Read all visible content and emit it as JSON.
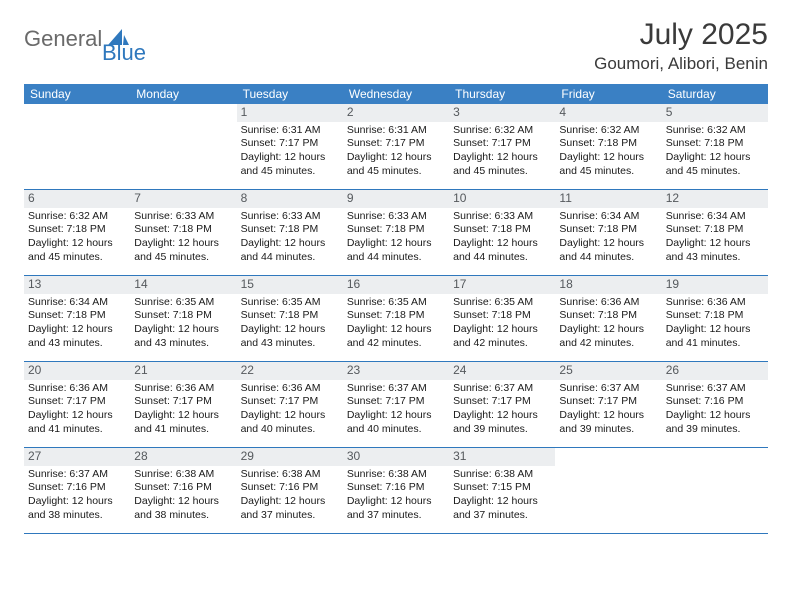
{
  "brand": {
    "general": "General",
    "blue": "Blue"
  },
  "title": "July 2025",
  "location": "Goumori, Alibori, Benin",
  "colors": {
    "header_bg": "#3a80c4",
    "header_text": "#ffffff",
    "date_bg": "#eceef0",
    "date_text": "#55595d",
    "divider": "#2f78bd",
    "logo_gray": "#6a6a6a",
    "logo_blue": "#2f78bd"
  },
  "day_names": [
    "Sunday",
    "Monday",
    "Tuesday",
    "Wednesday",
    "Thursday",
    "Friday",
    "Saturday"
  ],
  "weeks": [
    [
      {
        "n": "",
        "sunrise": "",
        "sunset": "",
        "daylight": ""
      },
      {
        "n": "",
        "sunrise": "",
        "sunset": "",
        "daylight": ""
      },
      {
        "n": "1",
        "sunrise": "Sunrise: 6:31 AM",
        "sunset": "Sunset: 7:17 PM",
        "daylight": "Daylight: 12 hours and 45 minutes."
      },
      {
        "n": "2",
        "sunrise": "Sunrise: 6:31 AM",
        "sunset": "Sunset: 7:17 PM",
        "daylight": "Daylight: 12 hours and 45 minutes."
      },
      {
        "n": "3",
        "sunrise": "Sunrise: 6:32 AM",
        "sunset": "Sunset: 7:17 PM",
        "daylight": "Daylight: 12 hours and 45 minutes."
      },
      {
        "n": "4",
        "sunrise": "Sunrise: 6:32 AM",
        "sunset": "Sunset: 7:18 PM",
        "daylight": "Daylight: 12 hours and 45 minutes."
      },
      {
        "n": "5",
        "sunrise": "Sunrise: 6:32 AM",
        "sunset": "Sunset: 7:18 PM",
        "daylight": "Daylight: 12 hours and 45 minutes."
      }
    ],
    [
      {
        "n": "6",
        "sunrise": "Sunrise: 6:32 AM",
        "sunset": "Sunset: 7:18 PM",
        "daylight": "Daylight: 12 hours and 45 minutes."
      },
      {
        "n": "7",
        "sunrise": "Sunrise: 6:33 AM",
        "sunset": "Sunset: 7:18 PM",
        "daylight": "Daylight: 12 hours and 45 minutes."
      },
      {
        "n": "8",
        "sunrise": "Sunrise: 6:33 AM",
        "sunset": "Sunset: 7:18 PM",
        "daylight": "Daylight: 12 hours and 44 minutes."
      },
      {
        "n": "9",
        "sunrise": "Sunrise: 6:33 AM",
        "sunset": "Sunset: 7:18 PM",
        "daylight": "Daylight: 12 hours and 44 minutes."
      },
      {
        "n": "10",
        "sunrise": "Sunrise: 6:33 AM",
        "sunset": "Sunset: 7:18 PM",
        "daylight": "Daylight: 12 hours and 44 minutes."
      },
      {
        "n": "11",
        "sunrise": "Sunrise: 6:34 AM",
        "sunset": "Sunset: 7:18 PM",
        "daylight": "Daylight: 12 hours and 44 minutes."
      },
      {
        "n": "12",
        "sunrise": "Sunrise: 6:34 AM",
        "sunset": "Sunset: 7:18 PM",
        "daylight": "Daylight: 12 hours and 43 minutes."
      }
    ],
    [
      {
        "n": "13",
        "sunrise": "Sunrise: 6:34 AM",
        "sunset": "Sunset: 7:18 PM",
        "daylight": "Daylight: 12 hours and 43 minutes."
      },
      {
        "n": "14",
        "sunrise": "Sunrise: 6:35 AM",
        "sunset": "Sunset: 7:18 PM",
        "daylight": "Daylight: 12 hours and 43 minutes."
      },
      {
        "n": "15",
        "sunrise": "Sunrise: 6:35 AM",
        "sunset": "Sunset: 7:18 PM",
        "daylight": "Daylight: 12 hours and 43 minutes."
      },
      {
        "n": "16",
        "sunrise": "Sunrise: 6:35 AM",
        "sunset": "Sunset: 7:18 PM",
        "daylight": "Daylight: 12 hours and 42 minutes."
      },
      {
        "n": "17",
        "sunrise": "Sunrise: 6:35 AM",
        "sunset": "Sunset: 7:18 PM",
        "daylight": "Daylight: 12 hours and 42 minutes."
      },
      {
        "n": "18",
        "sunrise": "Sunrise: 6:36 AM",
        "sunset": "Sunset: 7:18 PM",
        "daylight": "Daylight: 12 hours and 42 minutes."
      },
      {
        "n": "19",
        "sunrise": "Sunrise: 6:36 AM",
        "sunset": "Sunset: 7:18 PM",
        "daylight": "Daylight: 12 hours and 41 minutes."
      }
    ],
    [
      {
        "n": "20",
        "sunrise": "Sunrise: 6:36 AM",
        "sunset": "Sunset: 7:17 PM",
        "daylight": "Daylight: 12 hours and 41 minutes."
      },
      {
        "n": "21",
        "sunrise": "Sunrise: 6:36 AM",
        "sunset": "Sunset: 7:17 PM",
        "daylight": "Daylight: 12 hours and 41 minutes."
      },
      {
        "n": "22",
        "sunrise": "Sunrise: 6:36 AM",
        "sunset": "Sunset: 7:17 PM",
        "daylight": "Daylight: 12 hours and 40 minutes."
      },
      {
        "n": "23",
        "sunrise": "Sunrise: 6:37 AM",
        "sunset": "Sunset: 7:17 PM",
        "daylight": "Daylight: 12 hours and 40 minutes."
      },
      {
        "n": "24",
        "sunrise": "Sunrise: 6:37 AM",
        "sunset": "Sunset: 7:17 PM",
        "daylight": "Daylight: 12 hours and 39 minutes."
      },
      {
        "n": "25",
        "sunrise": "Sunrise: 6:37 AM",
        "sunset": "Sunset: 7:17 PM",
        "daylight": "Daylight: 12 hours and 39 minutes."
      },
      {
        "n": "26",
        "sunrise": "Sunrise: 6:37 AM",
        "sunset": "Sunset: 7:16 PM",
        "daylight": "Daylight: 12 hours and 39 minutes."
      }
    ],
    [
      {
        "n": "27",
        "sunrise": "Sunrise: 6:37 AM",
        "sunset": "Sunset: 7:16 PM",
        "daylight": "Daylight: 12 hours and 38 minutes."
      },
      {
        "n": "28",
        "sunrise": "Sunrise: 6:38 AM",
        "sunset": "Sunset: 7:16 PM",
        "daylight": "Daylight: 12 hours and 38 minutes."
      },
      {
        "n": "29",
        "sunrise": "Sunrise: 6:38 AM",
        "sunset": "Sunset: 7:16 PM",
        "daylight": "Daylight: 12 hours and 37 minutes."
      },
      {
        "n": "30",
        "sunrise": "Sunrise: 6:38 AM",
        "sunset": "Sunset: 7:16 PM",
        "daylight": "Daylight: 12 hours and 37 minutes."
      },
      {
        "n": "31",
        "sunrise": "Sunrise: 6:38 AM",
        "sunset": "Sunset: 7:15 PM",
        "daylight": "Daylight: 12 hours and 37 minutes."
      },
      {
        "n": "",
        "sunrise": "",
        "sunset": "",
        "daylight": ""
      },
      {
        "n": "",
        "sunrise": "",
        "sunset": "",
        "daylight": ""
      }
    ]
  ]
}
